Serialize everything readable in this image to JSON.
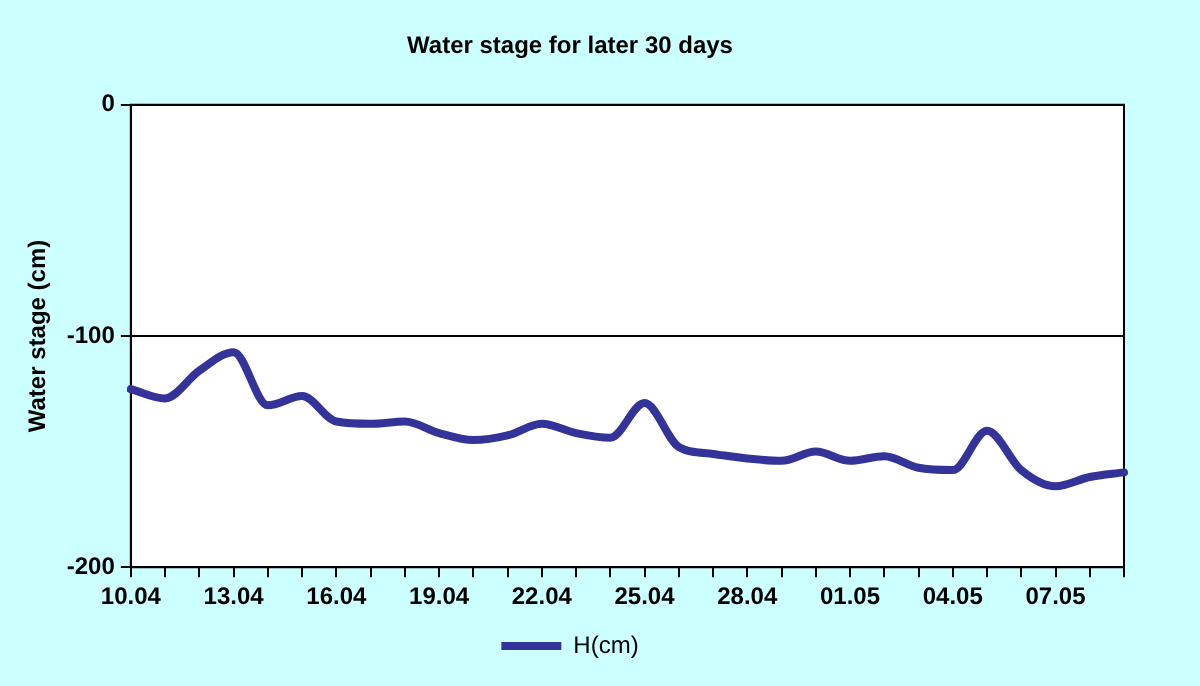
{
  "chart_data": {
    "type": "line",
    "title": "Water stage for later 30 days",
    "ylabel": "Water stage (cm)",
    "categories": [
      "10.04",
      null,
      null,
      "13.04",
      null,
      null,
      "16.04",
      null,
      null,
      "19.04",
      null,
      null,
      "22.04",
      null,
      null,
      "25.04",
      null,
      null,
      "28.04",
      null,
      null,
      "01.05",
      null,
      null,
      "04.05",
      null,
      null,
      "07.05",
      null,
      null
    ],
    "series": [
      {
        "name": "H(cm)",
        "color": "#333399",
        "values": [
          -123,
          -127,
          -115,
          -107,
          -130,
          -126,
          -137,
          -138,
          -137,
          -142,
          -145,
          -143,
          -138,
          -142,
          -144,
          -129,
          -148,
          -151,
          -153,
          -154,
          -150,
          -154,
          -152,
          -157,
          -158,
          -141,
          -158,
          -165,
          -161,
          -159
        ]
      }
    ],
    "ylim": [
      -200,
      0
    ],
    "yticks": [
      -200,
      -100,
      0
    ],
    "grid": "y",
    "legend": "bottom",
    "marker": "none",
    "line_style": "solid"
  }
}
